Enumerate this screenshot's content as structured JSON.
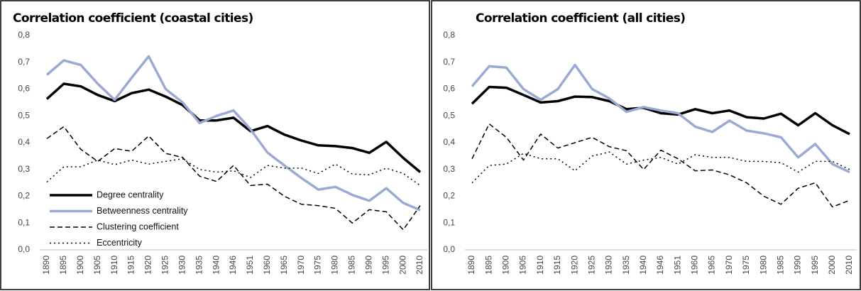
{
  "chart_data": [
    {
      "type": "line",
      "title": "Correlation coefficient (coastal cities)",
      "categories": [
        "1890",
        "1895",
        "1900",
        "1905",
        "1910",
        "1915",
        "1920",
        "1925",
        "1930",
        "1935",
        "1940",
        "1946",
        "1951",
        "1960",
        "1965",
        "1970",
        "1975",
        "1980",
        "1985",
        "1990",
        "1995",
        "2000",
        "2010"
      ],
      "series": [
        {
          "name": "Degree centrality",
          "color": "#000000",
          "width": 3.5,
          "dash": "solid",
          "values": [
            0.563,
            0.62,
            0.61,
            0.578,
            0.555,
            0.585,
            0.598,
            0.572,
            0.54,
            0.483,
            0.483,
            0.493,
            0.443,
            0.462,
            0.43,
            0.408,
            0.39,
            0.387,
            0.38,
            0.362,
            0.403,
            0.343,
            0.29
          ]
        },
        {
          "name": "Betweenness centrality",
          "color": "#9aaad3",
          "width": 3.5,
          "dash": "solid",
          "values": [
            0.653,
            0.707,
            0.69,
            0.62,
            0.56,
            0.642,
            0.722,
            0.6,
            0.55,
            0.473,
            0.5,
            0.52,
            0.45,
            0.363,
            0.315,
            0.268,
            0.225,
            0.235,
            0.205,
            0.183,
            0.23,
            0.175,
            0.148
          ]
        },
        {
          "name": "Clustering coefficient",
          "color": "#000000",
          "width": 1.5,
          "dash": "dashed",
          "values": [
            0.415,
            0.46,
            0.375,
            0.33,
            0.378,
            0.368,
            0.425,
            0.36,
            0.345,
            0.275,
            0.255,
            0.315,
            0.24,
            0.245,
            0.2,
            0.17,
            0.165,
            0.155,
            0.1,
            0.15,
            0.142,
            0.075,
            0.165
          ]
        },
        {
          "name": "Eccentricity",
          "color": "#000000",
          "width": 1.5,
          "dash": "dotted",
          "values": [
            0.253,
            0.31,
            0.31,
            0.335,
            0.318,
            0.335,
            0.32,
            0.33,
            0.34,
            0.3,
            0.29,
            0.295,
            0.27,
            0.315,
            0.305,
            0.305,
            0.285,
            0.32,
            0.283,
            0.28,
            0.305,
            0.285,
            0.24
          ]
        }
      ],
      "ylim": [
        0,
        0.8
      ],
      "yticks": [
        {
          "value": 0,
          "label": "0,0"
        },
        {
          "value": 0.1,
          "label": "0,1"
        },
        {
          "value": 0.2,
          "label": "0,2"
        },
        {
          "value": 0.3,
          "label": "0,3"
        },
        {
          "value": 0.4,
          "label": "0,4"
        },
        {
          "value": 0.5,
          "label": "0,5"
        },
        {
          "value": 0.6,
          "label": "0,6"
        },
        {
          "value": 0.7,
          "label": "0,7"
        },
        {
          "value": 0.8,
          "label": "0,8"
        }
      ],
      "grid": false,
      "legend": "lower left"
    },
    {
      "type": "line",
      "title": "Correlation coefficient (all cities)",
      "categories": [
        "1890",
        "1895",
        "1900",
        "1905",
        "1910",
        "1915",
        "1920",
        "1925",
        "1930",
        "1935",
        "1940",
        "1946",
        "1951",
        "1960",
        "1965",
        "1970",
        "1975",
        "1980",
        "1985",
        "1990",
        "1995",
        "2000",
        "2010"
      ],
      "series": [
        {
          "color": "#000000",
          "width": 3.5,
          "dash": "solid",
          "values": [
            0.545,
            0.608,
            0.605,
            0.578,
            0.55,
            0.555,
            0.572,
            0.57,
            0.555,
            0.525,
            0.53,
            0.51,
            0.505,
            0.525,
            0.51,
            0.52,
            0.495,
            0.49,
            0.508,
            0.465,
            0.51,
            0.465,
            0.432
          ]
        },
        {
          "color": "#9aaad3",
          "width": 3.5,
          "dash": "solid",
          "values": [
            0.61,
            0.685,
            0.68,
            0.6,
            0.56,
            0.6,
            0.69,
            0.6,
            0.565,
            0.515,
            0.533,
            0.52,
            0.51,
            0.46,
            0.44,
            0.482,
            0.445,
            0.435,
            0.42,
            0.345,
            0.395,
            0.32,
            0.29
          ]
        },
        {
          "color": "#000000",
          "width": 1.5,
          "dash": "dashed",
          "values": [
            0.34,
            0.47,
            0.42,
            0.335,
            0.432,
            0.38,
            0.4,
            0.42,
            0.385,
            0.37,
            0.3,
            0.372,
            0.34,
            0.295,
            0.298,
            0.28,
            0.25,
            0.2,
            0.17,
            0.23,
            0.25,
            0.16,
            0.185
          ]
        },
        {
          "color": "#000000",
          "width": 1.5,
          "dash": "dotted",
          "values": [
            0.25,
            0.315,
            0.32,
            0.36,
            0.34,
            0.34,
            0.295,
            0.35,
            0.365,
            0.32,
            0.335,
            0.345,
            0.32,
            0.355,
            0.345,
            0.345,
            0.33,
            0.33,
            0.325,
            0.29,
            0.33,
            0.33,
            0.3
          ]
        }
      ],
      "ylim": [
        0,
        0.8
      ],
      "yticks": [
        {
          "value": 0,
          "label": "0,0"
        },
        {
          "value": 0.1,
          "label": "0,1"
        },
        {
          "value": 0.2,
          "label": "0,2"
        },
        {
          "value": 0.3,
          "label": "0,3"
        },
        {
          "value": 0.4,
          "label": "0,4"
        },
        {
          "value": 0.5,
          "label": "0,5"
        },
        {
          "value": 0.6,
          "label": "0,6"
        },
        {
          "value": 0.7,
          "label": "0,7"
        },
        {
          "value": 0.8,
          "label": "0,8"
        }
      ],
      "grid": false
    }
  ]
}
